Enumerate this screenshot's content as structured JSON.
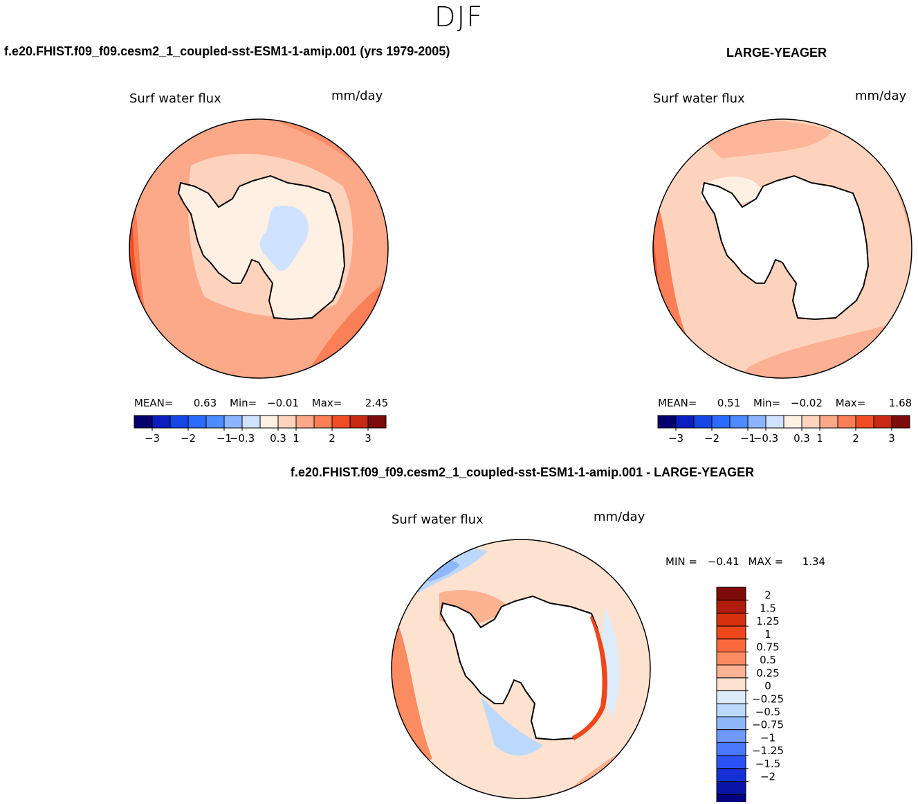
{
  "season": "DJF",
  "panels": [
    {
      "case_title": "f.e20.FHIST.f09_f09.cesm2_1_coupled-sst-ESM1-1-amip.001 (yrs 1979-2005)",
      "variable": "Surf water flux",
      "units": "mm/day",
      "stats": {
        "mean_label": "MEAN=",
        "mean": "0.63",
        "min_label": "Min=",
        "min": "−0.01",
        "max_label": "Max=",
        "max": "2.45"
      }
    },
    {
      "case_title": "LARGE-YEAGER",
      "variable": "Surf water flux",
      "units": "mm/day",
      "stats": {
        "mean_label": "MEAN=",
        "mean": "0.51",
        "min_label": "Min=",
        "min": "−0.02",
        "max_label": "Max=",
        "max": "1.68"
      }
    },
    {
      "case_title": "f.e20.FHIST.f09_f09.cesm2_1_coupled-sst-ESM1-1-amip.001 - LARGE-YEAGER",
      "variable": "Surf water flux",
      "units": "mm/day",
      "stats": {
        "min_label": "MIN =",
        "min": "−0.41",
        "max_label": "MAX =",
        "max": "1.34"
      }
    }
  ],
  "colors": {
    "map_field_base": "#fca98a",
    "land": "#ffffff",
    "coast": "#000000"
  },
  "chart_data": [
    {
      "type": "heatmap",
      "projection": "south-polar-stereographic",
      "title": "Surf water flux",
      "units": "mm/day",
      "colorbar": {
        "orientation": "horizontal",
        "colors": [
          "#05006e",
          "#0a1ec0",
          "#1546e6",
          "#2c6bff",
          "#4d8cff",
          "#8bb4ff",
          "#cfe2ff",
          "#fff0e4",
          "#fdd3bd",
          "#fca98a",
          "#fa7f56",
          "#f14e26",
          "#c92a15",
          "#7e0b0b"
        ],
        "tick_labels": [
          "−3",
          "−2",
          "−1",
          "−0.3",
          "0.3",
          "1",
          "2",
          "3"
        ],
        "tick_edges": [
          1,
          3,
          5,
          6,
          8,
          9,
          11,
          13
        ]
      }
    },
    {
      "type": "heatmap",
      "projection": "south-polar-stereographic",
      "title": "Surf water flux",
      "units": "mm/day",
      "colorbar": {
        "orientation": "horizontal",
        "colors": [
          "#05006e",
          "#0a1ec0",
          "#1546e6",
          "#2c6bff",
          "#4d8cff",
          "#8bb4ff",
          "#cfe2ff",
          "#fff0e4",
          "#fdd3bd",
          "#fca98a",
          "#fa7f56",
          "#f14e26",
          "#c92a15",
          "#7e0b0b"
        ],
        "tick_labels": [
          "−3",
          "−2",
          "−1",
          "−0.3",
          "0.3",
          "1",
          "2",
          "3"
        ],
        "tick_edges": [
          1,
          3,
          5,
          6,
          8,
          9,
          11,
          13
        ]
      }
    },
    {
      "type": "heatmap",
      "projection": "south-polar-stereographic",
      "title": "Surf water flux",
      "units": "mm/day",
      "colorbar": {
        "orientation": "vertical",
        "colors_top_to_bottom": [
          "#7e0b0b",
          "#b01c0c",
          "#d7300f",
          "#f0461c",
          "#fa6a3c",
          "#fb8c62",
          "#fdb291",
          "#fde2d0",
          "#ddecfb",
          "#bcd8fb",
          "#8fb8fb",
          "#6f99fc",
          "#4a78fd",
          "#2a52f6",
          "#1530d6",
          "#0a14a6",
          "#050082"
        ],
        "tick_labels": [
          "2",
          "1.5",
          "1.25",
          "1",
          "0.75",
          "0.5",
          "0.25",
          "0",
          "−0.25",
          "−0.5",
          "−0.75",
          "−1",
          "−1.25",
          "−1.5",
          "−2"
        ]
      }
    }
  ]
}
